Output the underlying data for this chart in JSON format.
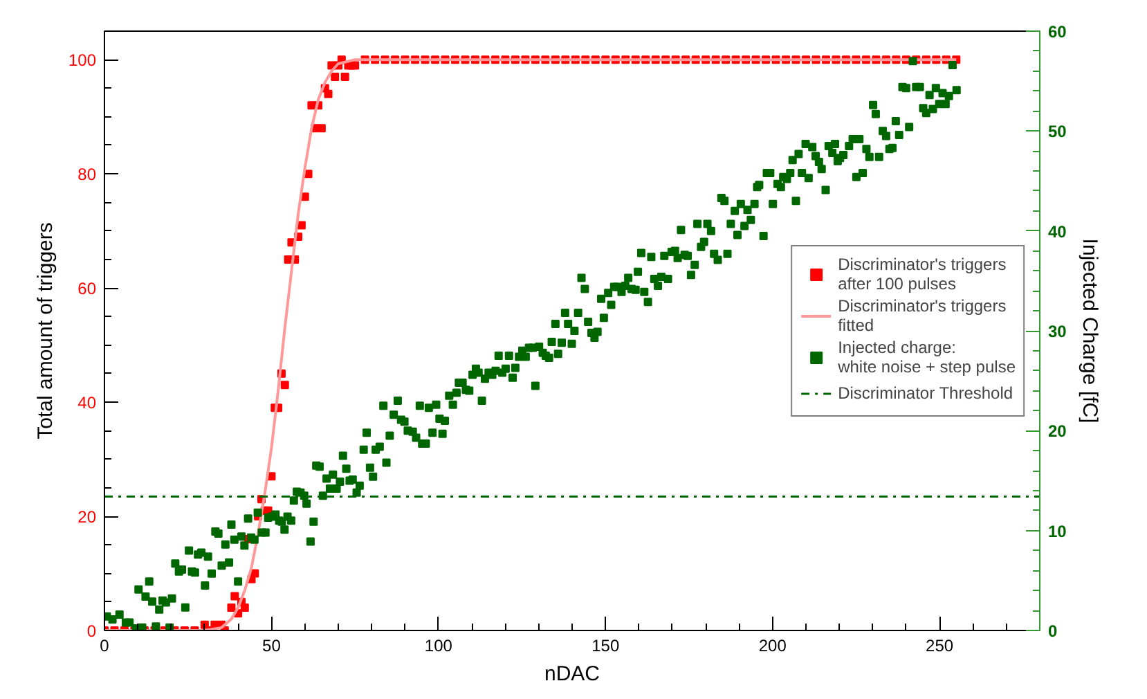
{
  "chart_data": {
    "type": "scatter",
    "xlabel": "nDAC",
    "ylabel": "Total amount of triggers",
    "y2label": "Injected Charge [fC]",
    "xlim": [
      0,
      280
    ],
    "ylim": [
      0,
      105
    ],
    "y2lim": [
      0,
      60
    ],
    "xticks": [
      0,
      {
        "value": 10,
        "label": null
      },
      {
        "value": 20,
        "label": null
      },
      {
        "value": 30,
        "label": null
      },
      {
        "value": 40,
        "label": null
      },
      50,
      {
        "value": 60,
        "label": null
      },
      {
        "value": 70,
        "label": null
      },
      {
        "value": 80,
        "label": null
      },
      {
        "value": 90,
        "label": null
      },
      100,
      {
        "value": 110,
        "label": null
      },
      {
        "value": 120,
        "label": null
      },
      {
        "value": 130,
        "label": null
      },
      {
        "value": 140,
        "label": null
      },
      150,
      {
        "value": 160,
        "label": null
      },
      {
        "value": 170,
        "label": null
      },
      {
        "value": 180,
        "label": null
      },
      {
        "value": 190,
        "label": null
      },
      200,
      {
        "value": 210,
        "label": null
      },
      {
        "value": 220,
        "label": null
      },
      {
        "value": 230,
        "label": null
      },
      {
        "value": 240,
        "label": null
      },
      250,
      {
        "value": 260,
        "label": null
      },
      {
        "value": 270,
        "label": null
      }
    ],
    "yticks": [
      0,
      {
        "value": 5,
        "label": null
      },
      {
        "value": 10,
        "label": null
      },
      {
        "value": 15,
        "label": null
      },
      20,
      {
        "value": 25,
        "label": null
      },
      {
        "value": 30,
        "label": null
      },
      {
        "value": 35,
        "label": null
      },
      40,
      {
        "value": 45,
        "label": null
      },
      {
        "value": 50,
        "label": null
      },
      {
        "value": 55,
        "label": null
      },
      60,
      {
        "value": 65,
        "label": null
      },
      {
        "value": 70,
        "label": null
      },
      {
        "value": 75,
        "label": null
      },
      80,
      {
        "value": 85,
        "label": null
      },
      {
        "value": 90,
        "label": null
      },
      {
        "value": 95,
        "label": null
      },
      100
    ],
    "y2ticks": [
      0,
      {
        "value": 2,
        "label": null
      },
      {
        "value": 4,
        "label": null
      },
      {
        "value": 6,
        "label": null
      },
      {
        "value": 8,
        "label": null
      },
      10,
      {
        "value": 12,
        "label": null
      },
      {
        "value": 14,
        "label": null
      },
      {
        "value": 16,
        "label": null
      },
      {
        "value": 18,
        "label": null
      },
      20,
      {
        "value": 22,
        "label": null
      },
      {
        "value": 24,
        "label": null
      },
      {
        "value": 26,
        "label": null
      },
      {
        "value": 28,
        "label": null
      },
      30,
      {
        "value": 32,
        "label": null
      },
      {
        "value": 34,
        "label": null
      },
      {
        "value": 36,
        "label": null
      },
      {
        "value": 38,
        "label": null
      },
      40,
      {
        "value": 42,
        "label": null
      },
      {
        "value": 44,
        "label": null
      },
      {
        "value": 46,
        "label": null
      },
      {
        "value": 48,
        "label": null
      },
      50,
      {
        "value": 52,
        "label": null
      },
      {
        "value": 54,
        "label": null
      },
      {
        "value": 56,
        "label": null
      },
      {
        "value": 58,
        "label": null
      },
      60
    ],
    "grid": false,
    "legend": "right",
    "marker": "square",
    "series": [
      {
        "name": "Discriminator's triggers\nafter 100 pulses",
        "color": "#ff0000",
        "x": [
          0,
          3,
          6,
          9,
          12,
          15,
          18,
          21,
          24,
          27,
          30,
          32,
          33,
          35,
          36,
          38,
          39,
          40,
          41,
          42,
          43,
          44,
          45,
          46,
          47,
          48,
          49,
          50,
          51,
          52,
          53,
          54,
          55,
          56,
          57,
          58,
          59,
          60,
          61,
          62,
          63,
          64,
          65,
          66,
          67,
          68,
          69,
          70,
          71,
          72,
          73,
          74,
          75,
          78,
          81,
          84,
          87,
          90,
          93,
          96,
          99,
          102,
          105,
          108,
          111,
          114,
          117,
          120,
          123,
          126,
          129,
          132,
          135,
          138,
          141,
          144,
          147,
          150,
          153,
          156,
          159,
          162,
          165,
          168,
          171,
          174,
          177,
          180,
          183,
          186,
          189,
          192,
          195,
          198,
          201,
          204,
          207,
          210,
          213,
          216,
          219,
          222,
          225,
          228,
          231,
          234,
          237,
          240,
          243,
          246,
          249,
          252,
          255
        ],
        "values": [
          0,
          0,
          0,
          0,
          0,
          0,
          0,
          0,
          0,
          0,
          1,
          0,
          1,
          1,
          0,
          4,
          6,
          3,
          5,
          4,
          16,
          9,
          10,
          20,
          23,
          21,
          21,
          27,
          39,
          39,
          45,
          43,
          65,
          68,
          65,
          69,
          71,
          76,
          80,
          92,
          88,
          92,
          88,
          95,
          94,
          99,
          97,
          99,
          100,
          97,
          99,
          99,
          99,
          100,
          100,
          100,
          100,
          100,
          100,
          100,
          100,
          100,
          100,
          100,
          100,
          100,
          100,
          100,
          100,
          100,
          100,
          100,
          100,
          100,
          100,
          100,
          100,
          100,
          100,
          100,
          100,
          100,
          100,
          100,
          100,
          100,
          100,
          100,
          100,
          100,
          100,
          100,
          100,
          100,
          100,
          100,
          100,
          100,
          100,
          100,
          100,
          100,
          100,
          100,
          100,
          100,
          100,
          100,
          100,
          100,
          100,
          100,
          100
        ]
      },
      {
        "name": "Discriminator's triggers\nfitted",
        "type": "line",
        "color": "#ff9999",
        "marker": "none",
        "x": [
          0,
          30,
          35,
          38,
          40,
          42,
          44,
          46,
          48,
          50,
          52,
          54,
          56,
          58,
          60,
          62,
          64,
          66,
          68,
          70,
          75,
          255
        ],
        "values": [
          0,
          0,
          0.5,
          2,
          4,
          7,
          11,
          17,
          24,
          32,
          42,
          53,
          63,
          73,
          81,
          88,
          93,
          96,
          98,
          99.3,
          100,
          100
        ]
      },
      {
        "name": "Injected charge:\nwhite noise + step pulse",
        "axis": "y2",
        "color": "#006600",
        "x": [
          0.7,
          2.4,
          4.5,
          6.4,
          7.5,
          9.4,
          10.2,
          11.3,
          12.3,
          13.4,
          14.3,
          15.4,
          16.4,
          17.4,
          18.4,
          19.5,
          20.2,
          21.2,
          22.3,
          23.2,
          24.2,
          25.3,
          26.2,
          27.1,
          28,
          29,
          30.1,
          31,
          32.1,
          33.2,
          34.1,
          35.1,
          36.2,
          37.3,
          38,
          38.9,
          40,
          41,
          41.9,
          43,
          43.9,
          44.9,
          45.9,
          47.1,
          48.2,
          49,
          50.1,
          51.2,
          52.3,
          53.1,
          53.9,
          54.8,
          55.9,
          56.7,
          57.6,
          58.7,
          59.8,
          60.5,
          61.7,
          62.6,
          63.4,
          64.4,
          65.4,
          66.5,
          67.5,
          68.4,
          69.5,
          70.5,
          71.4,
          72.4,
          73.4,
          74.3,
          75.5,
          76.4,
          77.6,
          78.5,
          79.5,
          80.4,
          81.2,
          82.4,
          83.5,
          84.4,
          85.4,
          86.6,
          87.8,
          88.8,
          89.8,
          90.8,
          92.3,
          93.3,
          94.4,
          95.1,
          96.2,
          97.1,
          98.2,
          99.3,
          100.3,
          101.2,
          101.9,
          103.2,
          104.3,
          105.4,
          106.1,
          107.2,
          108.2,
          109.2,
          110.2,
          111.2,
          112,
          113,
          113.9,
          115,
          116.1,
          117.1,
          118,
          119.1,
          120.1,
          121.1,
          122.2,
          123,
          124.1,
          125.1,
          126.1,
          127.1,
          128.2,
          129,
          130.1,
          131.2,
          132.1,
          133.1,
          133.9,
          135,
          135.8,
          136.9,
          137.9,
          138.8,
          139.9,
          140.7,
          141.8,
          142.8,
          143.8,
          144.8,
          145.8,
          146.7,
          147.6,
          148.7,
          149.5,
          150.8,
          151.7,
          152.6,
          153.5,
          154.8,
          155.9,
          156.8,
          157.8,
          159,
          159.7,
          160.7,
          161.6,
          162.7,
          163.7,
          164.6,
          165.7,
          166.7,
          167.6,
          168.7,
          169.8,
          170.8,
          171.6,
          172.6,
          173.7,
          174.6,
          175.6,
          176.7,
          177.5,
          178.6,
          179.5,
          180.5,
          181.6,
          182.5,
          183.6,
          184.7,
          185.6,
          186.5,
          187.5,
          188.7,
          189.5,
          190.5,
          191.6,
          192.5,
          193.5,
          194.6,
          195.4,
          196,
          197.3,
          198.3,
          199.3,
          200.1,
          201.5,
          202.5,
          203.2,
          204.3,
          205.3,
          206,
          207,
          207.8,
          208.8,
          209.9,
          210.8,
          211.9,
          212.9,
          213.9,
          214.7,
          215.9,
          216.8,
          217.9,
          218.7,
          219.5,
          220.2,
          221.2,
          222.9,
          224,
          225.1,
          226,
          227,
          228.1,
          229,
          230.1,
          230.9,
          231.9,
          233,
          234,
          235,
          235.9,
          236.9,
          237.9,
          238.9,
          240,
          240.9,
          242,
          243,
          244.1,
          245.1,
          246,
          247,
          248,
          248.9,
          249.9,
          250.9,
          251.8,
          252.8,
          253.9,
          255.1
        ],
        "values": [
          1.4,
          1.1,
          1.6,
          0.8,
          0.8,
          0.2,
          4.1,
          0.3,
          3.4,
          4.9,
          2.9,
          0.4,
          2.1,
          3,
          2.8,
          0.3,
          3.2,
          6.7,
          5.9,
          6.1,
          2.3,
          8,
          5.9,
          5.8,
          7.6,
          7.8,
          4.5,
          7.4,
          5.7,
          9.9,
          9.7,
          6.5,
          8.6,
          6.8,
          10.6,
          9.1,
          4.9,
          9.4,
          8.5,
          11.2,
          9.3,
          9.1,
          11.8,
          9.8,
          9.8,
          11.3,
          11.4,
          11.6,
          11,
          10.9,
          10.1,
          11.4,
          11,
          13,
          13.9,
          13.8,
          13.5,
          12.7,
          8.9,
          10.9,
          16.5,
          16.4,
          13.5,
          15.2,
          14.2,
          15.6,
          14.2,
          14.9,
          17.5,
          16.2,
          15,
          15.1,
          13.8,
          14.5,
          18.1,
          19.8,
          16.3,
          15.4,
          18.1,
          18.4,
          22.5,
          16.8,
          19.5,
          21.6,
          23,
          21.1,
          20.9,
          20,
          19.9,
          19.3,
          22.5,
          18.7,
          18.7,
          22.3,
          19.8,
          22.6,
          21.2,
          19.7,
          21,
          23.5,
          22.6,
          23.8,
          24.8,
          24.8,
          24.1,
          24,
          25.6,
          26.2,
          25.8,
          23,
          25.2,
          25.8,
          25.6,
          26,
          27.5,
          25.8,
          26.2,
          27.5,
          25.3,
          26.3,
          27.4,
          28,
          27.4,
          28.3,
          28.3,
          24.5,
          28.4,
          27.8,
          27.5,
          27.3,
          28.9,
          30.7,
          27.7,
          28.8,
          31.8,
          30.7,
          28.7,
          30,
          31.8,
          35.3,
          34.2,
          30.9,
          29.8,
          29.3,
          29.9,
          33.2,
          31.3,
          33.8,
          32.6,
          34.4,
          34.4,
          33.9,
          34.5,
          35.3,
          34.2,
          34.1,
          35.9,
          37.8,
          33.9,
          32.9,
          37.4,
          35.2,
          34.5,
          35.4,
          37.5,
          35.2,
          37.9,
          38,
          37.3,
          40.1,
          37.6,
          37.5,
          35.6,
          36.6,
          40.7,
          38.4,
          38.9,
          40.7,
          40,
          37.7,
          37.1,
          43.3,
          43,
          37.7,
          40.7,
          42,
          39.6,
          42.7,
          40.5,
          42.1,
          41.1,
          42.7,
          44.4,
          44.6,
          39.5,
          45.8,
          45.8,
          42.7,
          44.7,
          44.4,
          45.4,
          45.2,
          45.8,
          47.1,
          43,
          47.7,
          45.8,
          48.7,
          45.3,
          48.4,
          47.5,
          46.9,
          46.2,
          44.1,
          48.5,
          47.8,
          48.7,
          47,
          47.3,
          47.6,
          48.5,
          49.2,
          45.4,
          49.2,
          45.8,
          48.2,
          47.4,
          52.6,
          51.7,
          47.4,
          50,
          49.5,
          48.2,
          48.3,
          51,
          49.6,
          54.4,
          54.3,
          50.4,
          57,
          54.4,
          54.4,
          52.3,
          51.8,
          53.6,
          52.2,
          54.3,
          52.7,
          53.8,
          52.7,
          53.5,
          56.6,
          54.1
        ]
      }
    ],
    "ref_lines": [
      {
        "axis": "y2",
        "value": 13.4,
        "label": "Discriminator Threshold",
        "color": "#006600",
        "line_style": "dashdot"
      }
    ]
  }
}
